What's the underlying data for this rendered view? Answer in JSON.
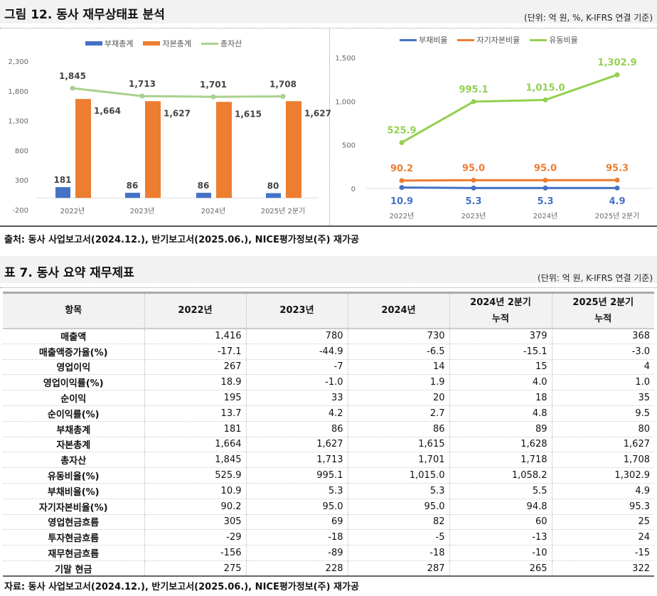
{
  "figure": {
    "title": "그림 12. 동사 재무상태표 분석",
    "unit": "(단위: 억 원, %, K-IFRS 연결 기준)",
    "source": "출처: 동사 사업보고서(2024.12.), 반기보고서(2025.06.), NICE평가정보(주) 재가공"
  },
  "chart_data": [
    {
      "type": "bar",
      "categories": [
        "2022년",
        "2023년",
        "2024년",
        "2025년 2분기"
      ],
      "ylim": [
        -200,
        2300
      ],
      "yticks": [
        "2,300",
        "1,800",
        "1,300",
        "800",
        "300",
        "-200"
      ],
      "legend": "top",
      "series": [
        {
          "name": "부채총계",
          "kind": "bar",
          "color": "#4472c4",
          "values": [
            181,
            86,
            86,
            80
          ],
          "labels": [
            "181",
            "86",
            "86",
            "80"
          ]
        },
        {
          "name": "자본총계",
          "kind": "bar",
          "color": "#ed7d31",
          "values": [
            1664,
            1627,
            1615,
            1627
          ],
          "labels": [
            "1,664",
            "1,627",
            "1,615",
            "1,627"
          ]
        },
        {
          "name": "총자산",
          "kind": "line",
          "color": "#a9d18e",
          "values": [
            1845,
            1713,
            1701,
            1708
          ],
          "labels": [
            "1,845",
            "1,713",
            "1,701",
            "1,708"
          ]
        }
      ]
    },
    {
      "type": "line",
      "categories": [
        "2022년",
        "2023년",
        "2024년",
        "2025년 2분기"
      ],
      "ylim": [
        0,
        1500
      ],
      "yticks": [
        "1,500",
        "1,000",
        "500",
        "0"
      ],
      "legend": "top",
      "series": [
        {
          "name": "부채비율",
          "color": "#4472c4",
          "values": [
            10.9,
            5.3,
            5.3,
            4.9
          ],
          "labels": [
            "10.9",
            "5.3",
            "5.3",
            "4.9"
          ]
        },
        {
          "name": "자기자본비율",
          "color": "#ed7d31",
          "values": [
            90.2,
            95.0,
            95.0,
            95.3
          ],
          "labels": [
            "90.2",
            "95.0",
            "95.0",
            "95.3"
          ]
        },
        {
          "name": "유동비율",
          "color": "#92d050",
          "values": [
            525.9,
            995.1,
            1015.0,
            1302.9
          ],
          "labels": [
            "525.9",
            "995.1",
            "1,015.0",
            "1,302.9"
          ]
        }
      ]
    }
  ],
  "table": {
    "title": "표 7. 동사 요약 재무제표",
    "unit": "(단위: 억 원, K-IFRS 연결 기준)",
    "headers": [
      [
        "항목"
      ],
      [
        "2022년"
      ],
      [
        "2023년"
      ],
      [
        "2024년"
      ],
      [
        "2024년 2분기",
        "누적"
      ],
      [
        "2025년 2분기",
        "누적"
      ]
    ],
    "rows": [
      [
        "매출액",
        "1,416",
        "780",
        "730",
        "379",
        "368"
      ],
      [
        "매출액증가율(%)",
        "-17.1",
        "-44.9",
        "-6.5",
        "-15.1",
        "-3.0"
      ],
      [
        "영업이익",
        "267",
        "-7",
        "14",
        "15",
        "4"
      ],
      [
        "영업이익률(%)",
        "18.9",
        "-1.0",
        "1.9",
        "4.0",
        "1.0"
      ],
      [
        "순이익",
        "195",
        "33",
        "20",
        "18",
        "35"
      ],
      [
        "순이익률(%)",
        "13.7",
        "4.2",
        "2.7",
        "4.8",
        "9.5"
      ],
      [
        "부채총계",
        "181",
        "86",
        "86",
        "89",
        "80"
      ],
      [
        "자본총계",
        "1,664",
        "1,627",
        "1,615",
        "1,628",
        "1,627"
      ],
      [
        "총자산",
        "1,845",
        "1,713",
        "1,701",
        "1,718",
        "1,708"
      ],
      [
        "유동비율(%)",
        "525.9",
        "995.1",
        "1,015.0",
        "1,058.2",
        "1,302.9"
      ],
      [
        "부채비율(%)",
        "10.9",
        "5.3",
        "5.3",
        "5.5",
        "4.9"
      ],
      [
        "자기자본비율(%)",
        "90.2",
        "95.0",
        "95.0",
        "94.8",
        "95.3"
      ],
      [
        "영업현금흐름",
        "305",
        "69",
        "82",
        "60",
        "25"
      ],
      [
        "투자현금흐름",
        "-29",
        "-18",
        "-5",
        "-13",
        "24"
      ],
      [
        "재무현금흐름",
        "-156",
        "-89",
        "-18",
        "-10",
        "-15"
      ],
      [
        "기말 현금",
        "275",
        "228",
        "287",
        "265",
        "322"
      ]
    ],
    "source": "자료: 동사 사업보고서(2024.12.), 반기보고서(2025.06.), NICE평가정보(주) 재가공"
  }
}
